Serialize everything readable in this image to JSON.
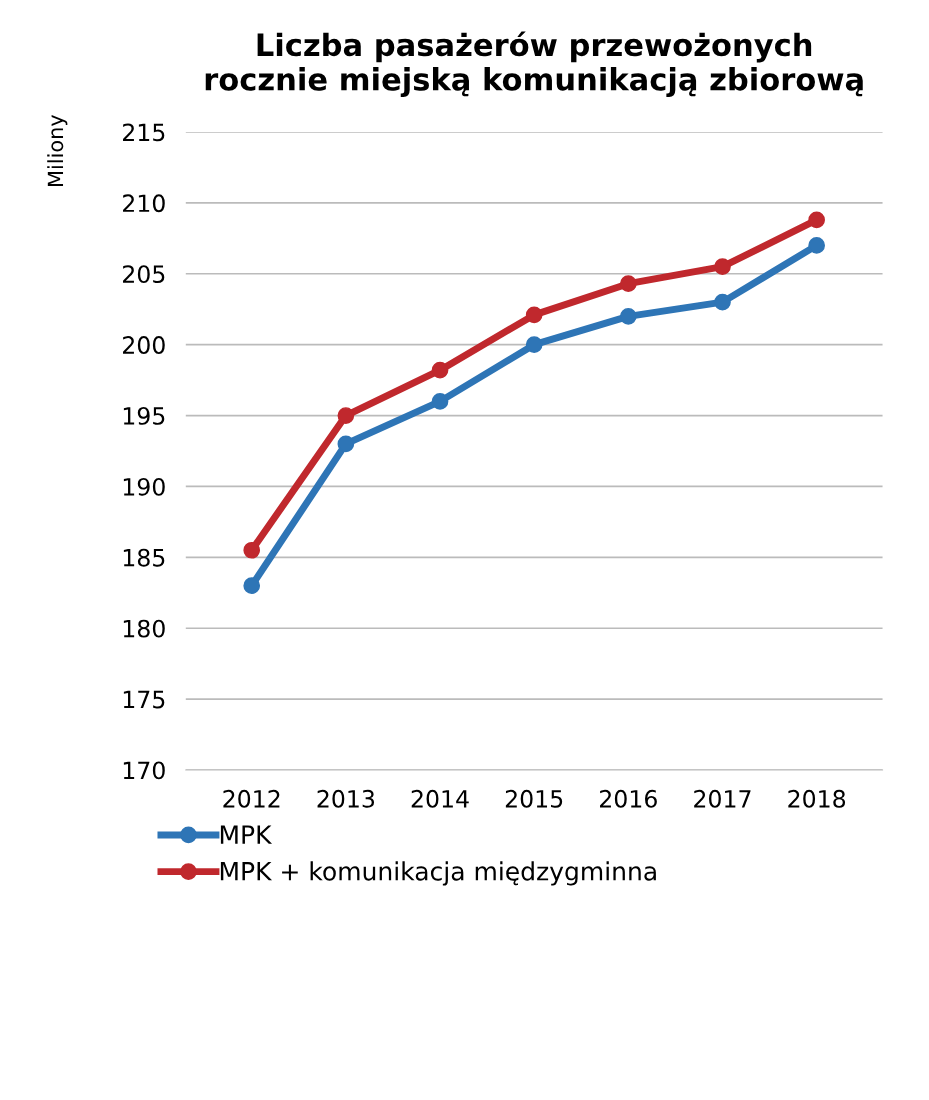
{
  "chart_data": {
    "type": "line",
    "title": "Liczba pasażerów przewożonych\nrocznie miejską komunikacją zbiorową",
    "ylabel": "Miliony",
    "categories": [
      "2012",
      "2013",
      "2014",
      "2015",
      "2016",
      "2017",
      "2018"
    ],
    "series": [
      {
        "name": "MPK",
        "color": "#2e75b6",
        "values": [
          183,
          193,
          196,
          200,
          202,
          203,
          207
        ]
      },
      {
        "name": "MPK + komunikacja międzygminna",
        "color": "#c0282d",
        "values": [
          185.5,
          195,
          198.2,
          202.1,
          204.3,
          205.5,
          208.8
        ]
      }
    ],
    "ylim": [
      170,
      215
    ],
    "yticks": [
      170,
      175,
      180,
      185,
      190,
      195,
      200,
      205,
      210,
      215
    ],
    "grid": "y",
    "legend": "bottom",
    "marker": "circle",
    "line_style": "solid"
  }
}
